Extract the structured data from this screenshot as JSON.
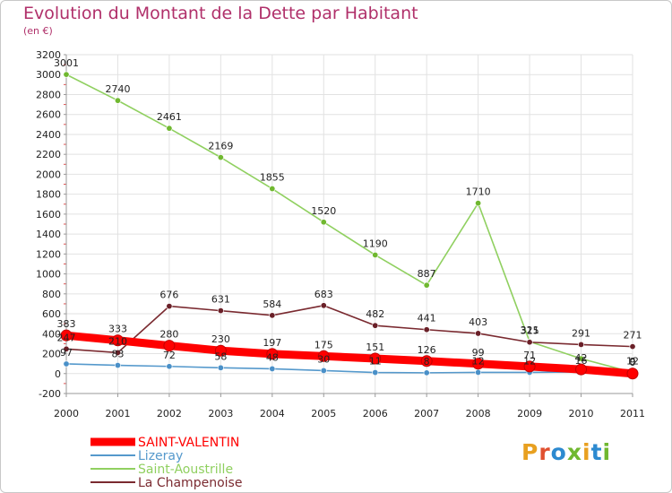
{
  "title": "Evolution du Montant de la Dette par Habitant",
  "unit_label": "(en €)",
  "logo": {
    "text": "Proxiti",
    "colors": [
      "#e8a020",
      "#e05030",
      "#2c8ad0",
      "#70b830",
      "#e8a020",
      "#2c8ad0",
      "#70b830"
    ]
  },
  "chart_data": {
    "type": "line",
    "title": "Evolution du Montant de la Dette par Habitant",
    "xlabel": "",
    "ylabel": "(en €)",
    "ylim": [
      -200,
      3200
    ],
    "yticks": [
      -200,
      0,
      200,
      400,
      600,
      800,
      1000,
      1200,
      1400,
      1600,
      1800,
      2000,
      2200,
      2400,
      2600,
      2800,
      3000,
      3200
    ],
    "x": [
      "2000",
      "2001",
      "2002",
      "2003",
      "2004",
      "2005",
      "2006",
      "2007",
      "2008",
      "2009",
      "2010",
      "2011"
    ],
    "legend_position": "bottom-left",
    "series": [
      {
        "name": "Saint-Aoustrille",
        "color": "#90d060",
        "marker": "#70b830",
        "values": [
          3001,
          2740,
          2461,
          2169,
          1855,
          1520,
          1190,
          887,
          1710,
          321,
          150,
          12
        ],
        "labels": [
          "3001",
          "2740",
          "2461",
          "2169",
          "1855",
          "1520",
          "1190",
          "887",
          "1710",
          "321",
          "",
          "12"
        ]
      },
      {
        "name": "La Champenoise",
        "color": "#7a2a30",
        "marker": "#6a2028",
        "values": [
          247,
          210,
          676,
          631,
          584,
          683,
          482,
          441,
          403,
          315,
          291,
          271
        ],
        "labels": [
          "247",
          "210",
          "676",
          "631",
          "584",
          "683",
          "482",
          "441",
          "403",
          "315",
          "291",
          "271"
        ]
      },
      {
        "name": "Lizeray",
        "color": "#5599cc",
        "marker": "#4a90c8",
        "values": [
          97,
          83,
          72,
          58,
          48,
          30,
          11,
          8,
          12,
          12,
          16,
          9
        ],
        "labels": [
          "97",
          "83",
          "72",
          "58",
          "48",
          "30",
          "11",
          "8",
          "12",
          "12",
          "16",
          "9"
        ]
      },
      {
        "name": "SAINT-VALENTIN",
        "color": "#ff0000",
        "marker": "#ff0000",
        "values": [
          383,
          333,
          280,
          230,
          197,
          175,
          151,
          126,
          99,
          71,
          42,
          0
        ],
        "labels": [
          "383",
          "333",
          "280",
          "230",
          "197",
          "175",
          "151",
          "126",
          "99",
          "71",
          "42",
          "0"
        ]
      }
    ],
    "legend_order": [
      "SAINT-VALENTIN",
      "Lizeray",
      "Saint-Aoustrille",
      "La Champenoise"
    ]
  }
}
